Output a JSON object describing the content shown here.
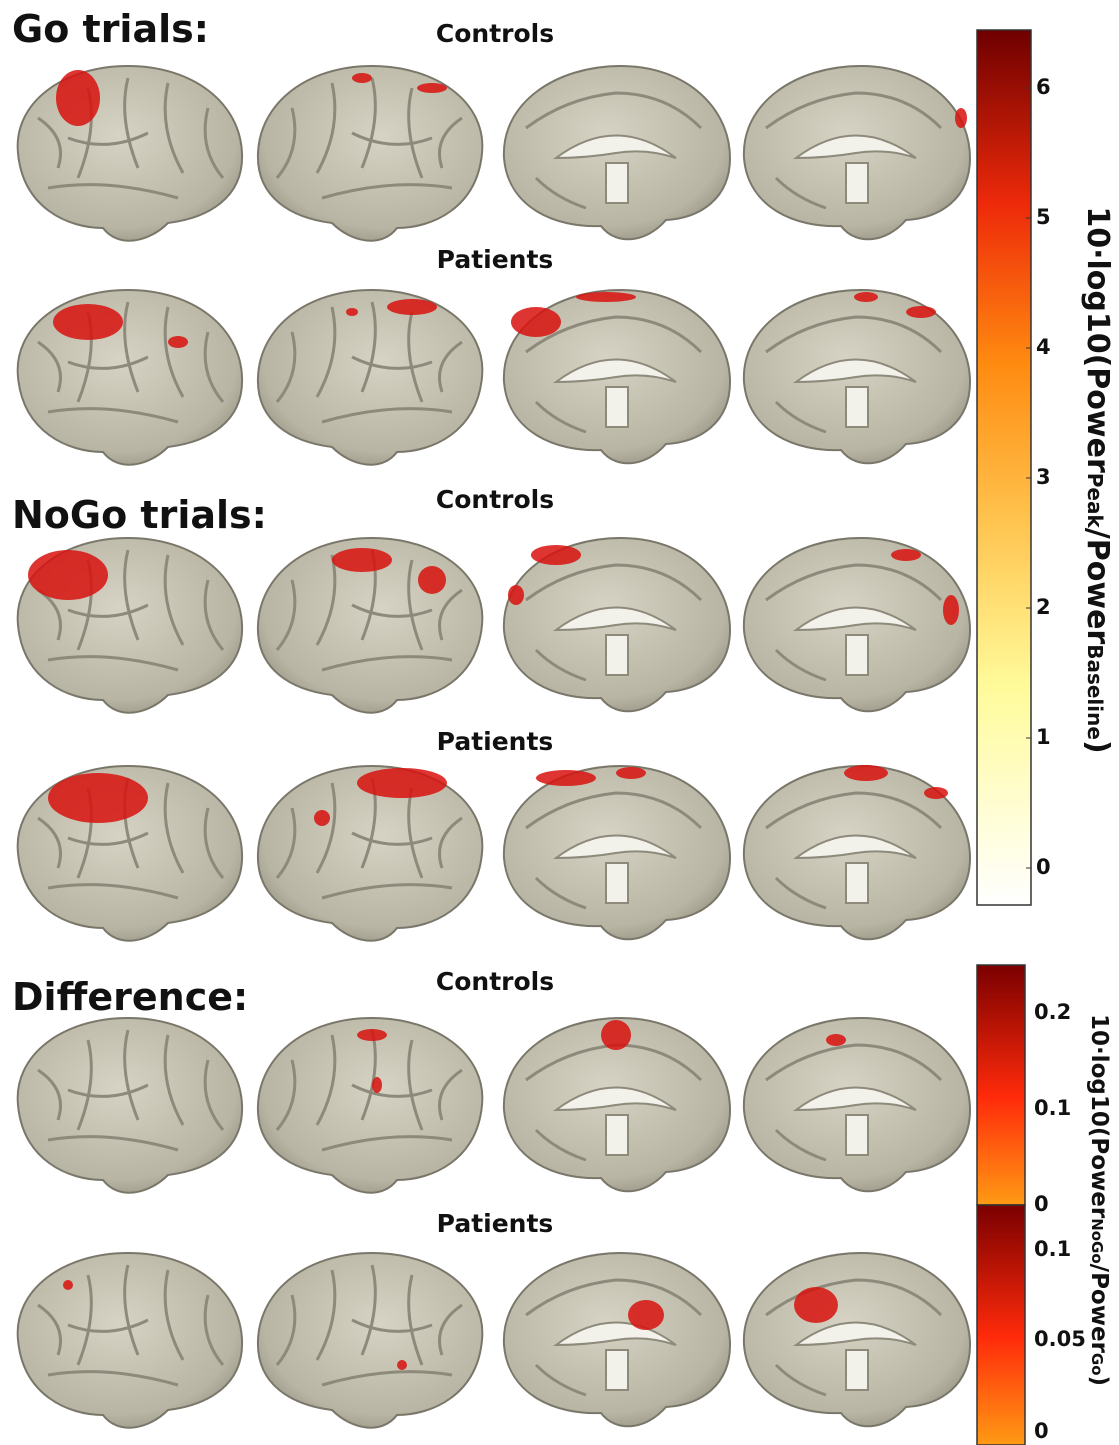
{
  "sections": [
    {
      "title": "Go trials:",
      "groups": [
        {
          "label": "Controls"
        },
        {
          "label": "Patients"
        }
      ]
    },
    {
      "title": "NoGo trials:",
      "groups": [
        {
          "label": "Controls"
        },
        {
          "label": "Patients"
        }
      ]
    },
    {
      "title": "Difference:",
      "groups": [
        {
          "label": "Controls"
        },
        {
          "label": "Patients"
        }
      ]
    }
  ],
  "colorbars": [
    {
      "ticks": [
        "0",
        "1",
        "2",
        "3",
        "4",
        "5",
        "6"
      ],
      "label_parts": [
        "10·log10(Power",
        "Peak",
        "/Power",
        "Baseline",
        ")"
      ]
    },
    {
      "ticks_top": [
        "0",
        "0.1",
        "0.2"
      ],
      "ticks_bottom": [
        "0",
        "0.05",
        "0.1"
      ],
      "label_parts": [
        "10·log10(Power",
        "NoGo",
        "/Power",
        "Go",
        ")"
      ]
    }
  ]
}
